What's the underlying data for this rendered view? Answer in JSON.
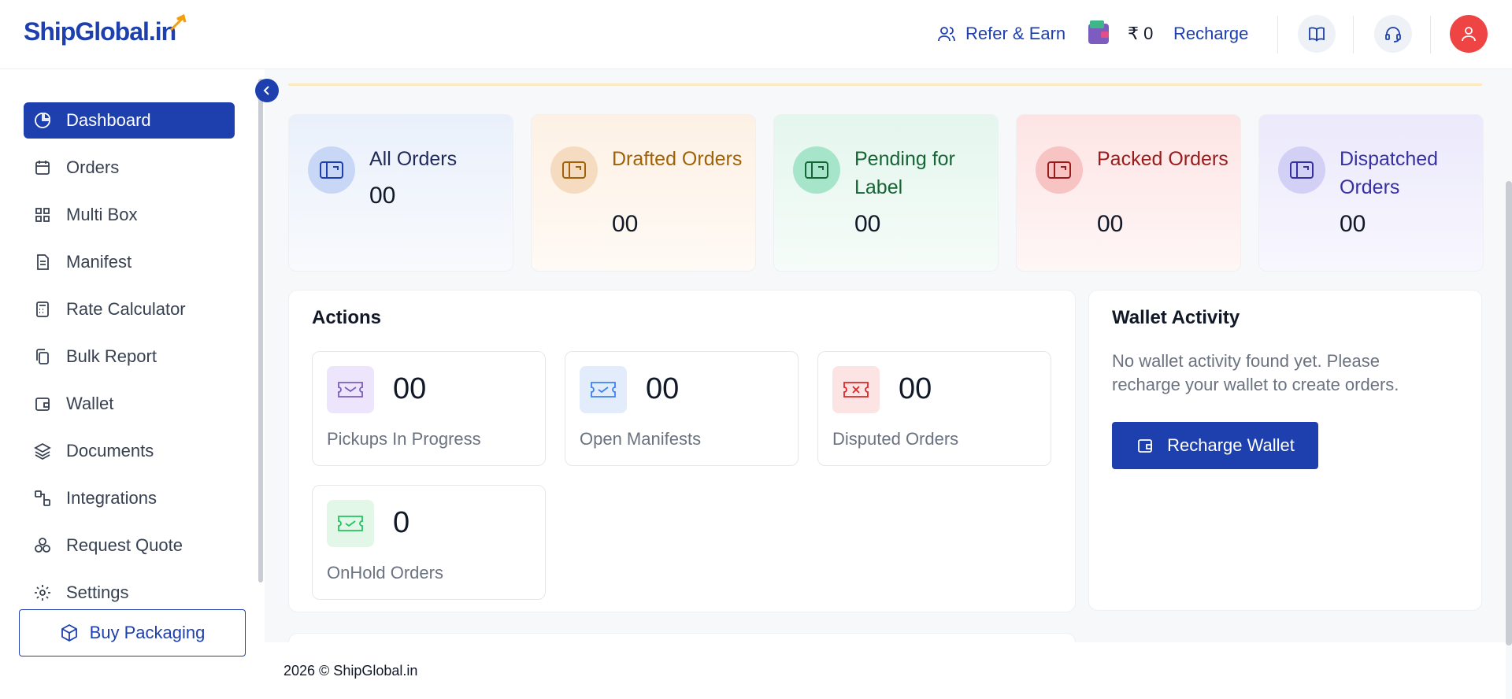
{
  "header": {
    "logo_text": "ShipGlobal.in",
    "refer_label": "Refer & Earn",
    "balance": "₹ 0",
    "recharge_label": "Recharge"
  },
  "sidebar": {
    "items": [
      {
        "label": "Dashboard",
        "icon": "pie-chart-icon"
      },
      {
        "label": "Orders",
        "icon": "calendar-icon"
      },
      {
        "label": "Multi Box",
        "icon": "grid-icon"
      },
      {
        "label": "Manifest",
        "icon": "document-icon"
      },
      {
        "label": "Rate Calculator",
        "icon": "calculator-icon"
      },
      {
        "label": "Bulk Report",
        "icon": "copy-icon"
      },
      {
        "label": "Wallet",
        "icon": "wallet-icon"
      },
      {
        "label": "Documents",
        "icon": "layers-icon"
      },
      {
        "label": "Integrations",
        "icon": "integration-icon"
      },
      {
        "label": "Request Quote",
        "icon": "boxes-icon"
      },
      {
        "label": "Settings",
        "icon": "gear-icon"
      }
    ],
    "buy_packaging": "Buy Packaging"
  },
  "stats": [
    {
      "label": "All Orders",
      "value": "00",
      "color": "#1f2a5a"
    },
    {
      "label": "Drafted Orders",
      "value": "00",
      "color": "#a16207"
    },
    {
      "label": "Pending for Label",
      "value": "00",
      "color": "#166534"
    },
    {
      "label": "Packed Orders",
      "value": "00",
      "color": "#991b1b"
    },
    {
      "label": "Dispatched Orders",
      "value": "00",
      "color": "#3730a3"
    }
  ],
  "actions": {
    "title": "Actions",
    "items": [
      {
        "value": "00",
        "label": "Pickups In Progress"
      },
      {
        "value": "00",
        "label": "Open Manifests"
      },
      {
        "value": "00",
        "label": "Disputed Orders"
      },
      {
        "value": "0",
        "label": "OnHold Orders"
      }
    ]
  },
  "wallet_activity": {
    "title": "Wallet Activity",
    "message": "No wallet activity found yet. Please recharge your wallet to create orders.",
    "button": "Recharge Wallet"
  },
  "footer": {
    "text": "2026 © ShipGlobal.in"
  },
  "colors": {
    "brand": "#1e40af",
    "avatar": "#ef4444"
  }
}
